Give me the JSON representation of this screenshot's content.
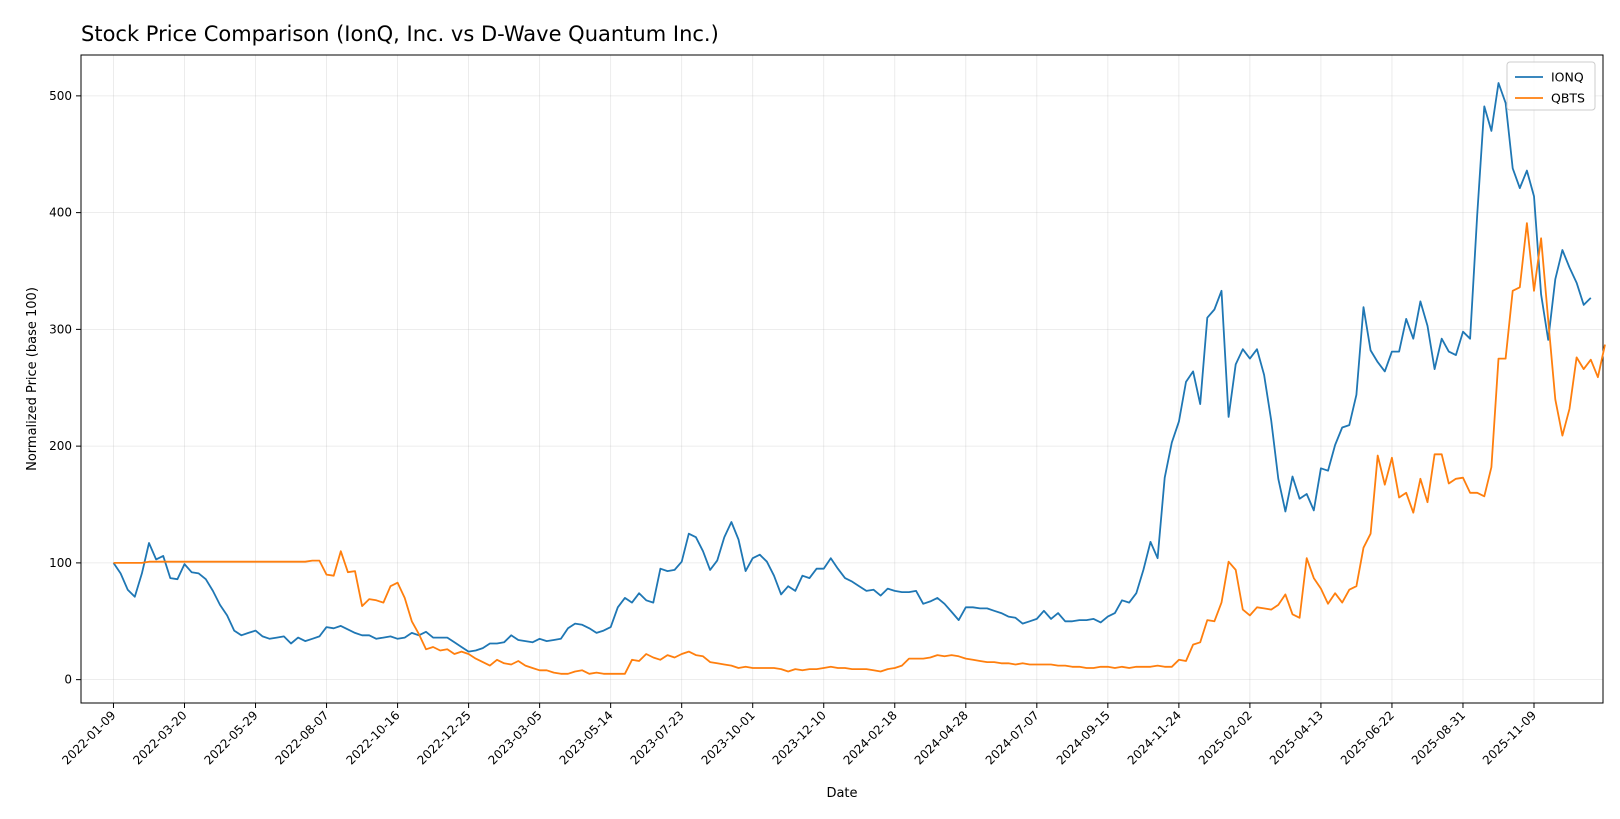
{
  "chart_data": {
    "type": "line",
    "title": "Stock Price Comparison (IonQ, Inc. vs D-Wave Quantum Inc.)",
    "xlabel": "Date",
    "ylabel": "Normalized Price (base 100)",
    "ylim": [
      -20,
      535
    ],
    "xlim": [
      "2021-12-08",
      "2026-01-16"
    ],
    "yticks": [
      0,
      100,
      200,
      300,
      400,
      500
    ],
    "xticks": [
      "2022-01-09",
      "2022-03-20",
      "2022-05-29",
      "2022-08-07",
      "2022-10-16",
      "2022-12-25",
      "2023-03-05",
      "2023-05-14",
      "2023-07-23",
      "2023-10-01",
      "2023-12-10",
      "2024-02-18",
      "2024-04-28",
      "2024-07-07",
      "2024-09-15",
      "2024-11-24",
      "2025-02-02",
      "2025-04-13",
      "2025-06-22",
      "2025-08-31",
      "2025-11-09"
    ],
    "grid": true,
    "legend": "top-right",
    "start": "2022-01-09",
    "step_days": 7,
    "series": [
      {
        "name": "IONQ",
        "color": "#1f77b4",
        "values": [
          100,
          91,
          77,
          71,
          91,
          117,
          103,
          106,
          87,
          86,
          99,
          92,
          91,
          86,
          76,
          64,
          55,
          42,
          38,
          40,
          42,
          37,
          35,
          36,
          37,
          31,
          36,
          33,
          35,
          37,
          45,
          44,
          46,
          43,
          40,
          38,
          38,
          35,
          36,
          37,
          35,
          36,
          40,
          38,
          41,
          36,
          36,
          36,
          32,
          28,
          24,
          25,
          27,
          31,
          31,
          32,
          38,
          34,
          33,
          32,
          35,
          33,
          34,
          35,
          44,
          48,
          47,
          44,
          40,
          42,
          45,
          62,
          70,
          66,
          74,
          68,
          66,
          95,
          93,
          94,
          101,
          125,
          122,
          110,
          94,
          102,
          122,
          135,
          120,
          93,
          104,
          107,
          101,
          89,
          73,
          80,
          76,
          89,
          87,
          95,
          95,
          104,
          95,
          87,
          84,
          80,
          76,
          77,
          72,
          78,
          76,
          75,
          75,
          76,
          65,
          67,
          70,
          65,
          58,
          51,
          62,
          62,
          61,
          61,
          59,
          57,
          54,
          53,
          48,
          50,
          52,
          59,
          52,
          57,
          50,
          50,
          51,
          51,
          52,
          49,
          54,
          57,
          68,
          66,
          74,
          94,
          118,
          104,
          173,
          203,
          221,
          255,
          264,
          236,
          310,
          317,
          333,
          225,
          270,
          283,
          275,
          283,
          261,
          222,
          172,
          144,
          174,
          155,
          159,
          145,
          181,
          179,
          201,
          216,
          218,
          244,
          319,
          282,
          272,
          264,
          281,
          281,
          309,
          292,
          324,
          303,
          266,
          292,
          281,
          278,
          298,
          292,
          398,
          491,
          470,
          511,
          494,
          438,
          421,
          436,
          414,
          330,
          291,
          343,
          368,
          353,
          340,
          321,
          327
        ]
      },
      {
        "name": "QBTS",
        "color": "#ff7f0e",
        "values": [
          100,
          100,
          100,
          100,
          100,
          101,
          101,
          101,
          101,
          101,
          101,
          101,
          101,
          101,
          101,
          101,
          101,
          101,
          101,
          101,
          101,
          101,
          101,
          101,
          101,
          101,
          101,
          101,
          102,
          102,
          90,
          89,
          110,
          92,
          93,
          63,
          69,
          68,
          66,
          80,
          83,
          70,
          50,
          39,
          26,
          28,
          25,
          26,
          22,
          24,
          22,
          18,
          15,
          12,
          17,
          14,
          13,
          16,
          12,
          10,
          8,
          8,
          6,
          5,
          5,
          7,
          8,
          5,
          6,
          5,
          5,
          5,
          5,
          17,
          16,
          22,
          19,
          17,
          21,
          19,
          22,
          24,
          21,
          20,
          15,
          14,
          13,
          12,
          10,
          11,
          10,
          10,
          10,
          10,
          9,
          7,
          9,
          8,
          9,
          9,
          10,
          11,
          10,
          10,
          9,
          9,
          9,
          8,
          7,
          9,
          10,
          12,
          18,
          18,
          18,
          19,
          21,
          20,
          21,
          20,
          18,
          17,
          16,
          15,
          15,
          14,
          14,
          13,
          14,
          13,
          13,
          13,
          13,
          12,
          12,
          11,
          11,
          10,
          10,
          11,
          11,
          10,
          11,
          10,
          11,
          11,
          11,
          12,
          11,
          11,
          17,
          16,
          30,
          32,
          51,
          50,
          66,
          101,
          94,
          60,
          55,
          62,
          61,
          60,
          64,
          73,
          56,
          53,
          104,
          87,
          78,
          65,
          74,
          66,
          77,
          80,
          113,
          125,
          192,
          167,
          190,
          156,
          160,
          143,
          172,
          152,
          193,
          193,
          168,
          172,
          173,
          160,
          160,
          157,
          182,
          275,
          275,
          333,
          336,
          391,
          333,
          378,
          308,
          240,
          209,
          232,
          276,
          266,
          274,
          259,
          287
        ]
      }
    ]
  }
}
